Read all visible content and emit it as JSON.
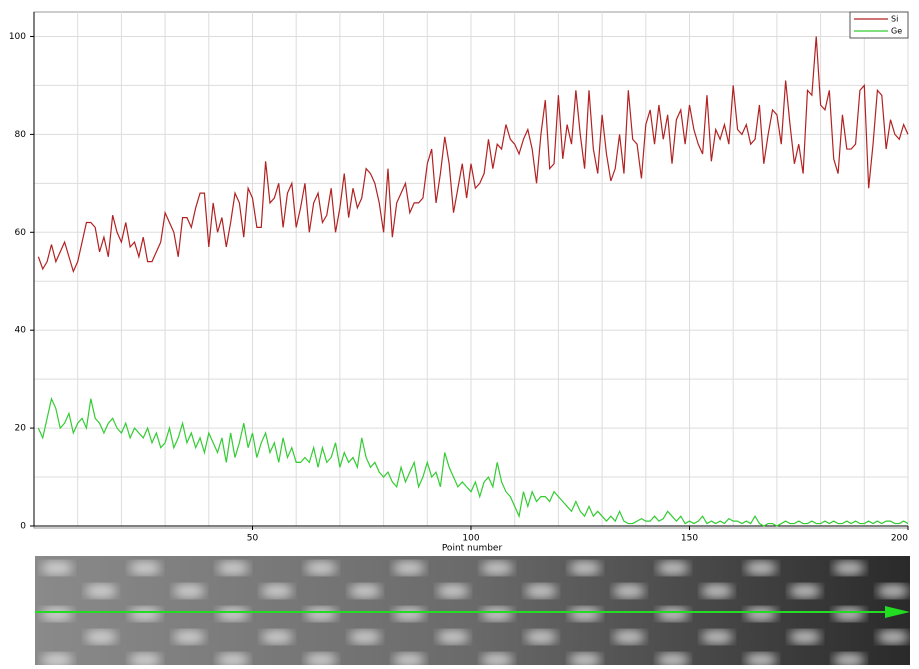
{
  "chart_data": {
    "type": "line",
    "x_label": "Point number",
    "x": [
      1,
      2,
      3,
      4,
      5,
      6,
      7,
      8,
      9,
      10,
      11,
      12,
      13,
      14,
      15,
      16,
      17,
      18,
      19,
      20,
      21,
      22,
      23,
      24,
      25,
      26,
      27,
      28,
      29,
      30,
      31,
      32,
      33,
      34,
      35,
      36,
      37,
      38,
      39,
      40,
      41,
      42,
      43,
      44,
      45,
      46,
      47,
      48,
      49,
      50,
      51,
      52,
      53,
      54,
      55,
      56,
      57,
      58,
      59,
      60,
      61,
      62,
      63,
      64,
      65,
      66,
      67,
      68,
      69,
      70,
      71,
      72,
      73,
      74,
      75,
      76,
      77,
      78,
      79,
      80,
      81,
      82,
      83,
      84,
      85,
      86,
      87,
      88,
      89,
      90,
      91,
      92,
      93,
      94,
      95,
      96,
      97,
      98,
      99,
      100,
      101,
      102,
      103,
      104,
      105,
      106,
      107,
      108,
      109,
      110,
      111,
      112,
      113,
      114,
      115,
      116,
      117,
      118,
      119,
      120,
      121,
      122,
      123,
      124,
      125,
      126,
      127,
      128,
      129,
      130,
      131,
      132,
      133,
      134,
      135,
      136,
      137,
      138,
      139,
      140,
      141,
      142,
      143,
      144,
      145,
      146,
      147,
      148,
      149,
      150,
      151,
      152,
      153,
      154,
      155,
      156,
      157,
      158,
      159,
      160,
      161,
      162,
      163,
      164,
      165,
      166,
      167,
      168,
      169,
      170,
      171,
      172,
      173,
      174,
      175,
      176,
      177,
      178,
      179,
      180,
      181,
      182,
      183,
      184,
      185,
      186,
      187,
      188,
      189,
      190,
      191,
      192,
      193,
      194,
      195,
      196,
      197,
      198,
      199,
      200
    ],
    "series": [
      {
        "name": "Si",
        "color": "#b22222",
        "values": [
          55,
          52.5,
          54,
          57.5,
          54,
          56,
          58,
          55,
          52,
          54,
          58,
          62,
          62,
          61,
          56,
          59,
          55,
          63.5,
          60,
          58,
          62,
          57,
          58,
          55,
          59,
          54,
          54,
          56,
          58,
          64,
          62,
          60,
          55,
          63,
          63,
          61,
          65,
          68,
          68,
          57,
          66,
          60,
          63,
          57,
          62,
          68,
          66,
          59,
          69,
          67,
          61,
          61,
          74.5,
          66,
          67,
          70,
          61,
          68,
          70,
          61,
          65,
          70,
          60,
          66,
          68,
          62,
          63.5,
          69,
          60,
          65,
          72,
          63,
          69,
          65,
          67,
          73,
          72,
          70,
          66,
          60,
          73,
          59,
          66,
          68,
          70,
          64,
          66,
          66,
          67,
          74,
          77,
          66,
          72,
          79.5,
          74,
          64,
          69,
          74,
          67,
          74,
          69,
          70,
          72,
          79,
          73,
          78,
          77,
          82,
          79,
          78,
          76,
          79,
          81,
          77,
          70,
          80,
          87,
          73,
          74,
          88,
          75,
          82,
          78,
          89,
          80,
          73,
          89,
          77,
          72,
          84,
          76,
          70.5,
          73,
          80,
          72,
          89,
          79,
          78,
          71,
          82,
          85,
          78,
          86,
          79,
          84,
          74,
          83,
          85,
          78,
          86,
          81,
          78,
          76,
          88,
          74.5,
          81,
          79,
          82,
          78,
          90,
          81,
          80,
          82,
          78,
          79,
          86,
          74,
          80,
          85,
          84,
          78,
          91,
          82,
          74,
          78,
          72,
          89,
          88,
          100,
          86,
          85,
          89,
          75,
          72,
          84,
          77,
          77,
          78,
          89,
          90,
          69,
          78,
          89,
          88,
          77,
          83,
          80,
          79,
          82,
          80
        ]
      },
      {
        "name": "Ge",
        "color": "#33cc33",
        "values": [
          20,
          18,
          22,
          26,
          24,
          20,
          21,
          23,
          19,
          21,
          22,
          20,
          26,
          22,
          21,
          19,
          21,
          22,
          20,
          19,
          21,
          18,
          20,
          19,
          18,
          20,
          17,
          19,
          16,
          17,
          20,
          16,
          18,
          21,
          17,
          19,
          16,
          18,
          15,
          19,
          17,
          15,
          18,
          13,
          19,
          14,
          17,
          21,
          16,
          19,
          14,
          17,
          19,
          15,
          17,
          13,
          18,
          14,
          16,
          13,
          13,
          14,
          13,
          16,
          12,
          16,
          13,
          14,
          17,
          12,
          15,
          13,
          14,
          12,
          18,
          14,
          12,
          13,
          11,
          10,
          11,
          9,
          8,
          12,
          9,
          11,
          13,
          8,
          10,
          13,
          10,
          11,
          8,
          15,
          12,
          10,
          8,
          9,
          8,
          7,
          9,
          6,
          9,
          10,
          8,
          13,
          9,
          7,
          6,
          4,
          2,
          7,
          4,
          7,
          5,
          6,
          6,
          5,
          7,
          6,
          5,
          4,
          3,
          5,
          3,
          2,
          4,
          2,
          3,
          2,
          1,
          2,
          1,
          3,
          1,
          0.5,
          0.5,
          1,
          1.5,
          1,
          1,
          2,
          1,
          1.5,
          3,
          2,
          1,
          2,
          0.5,
          1,
          0.5,
          1,
          2,
          0.5,
          1,
          0.5,
          1,
          0.5,
          1.5,
          1,
          1,
          0.5,
          1,
          0.5,
          2,
          0.5,
          0,
          0.5,
          0.5,
          0,
          0.5,
          1,
          0.5,
          0.5,
          1,
          0.5,
          0.5,
          1,
          0.5,
          0.5,
          1,
          0.5,
          1,
          0.5,
          0.5,
          1,
          0.5,
          1,
          0.5,
          0.5,
          1,
          0.5,
          1,
          0.5,
          1,
          1,
          0.5,
          0.5,
          1,
          0.5
        ]
      }
    ],
    "xlim": [
      0,
      200
    ],
    "ylim": [
      0,
      105
    ],
    "xticks": [
      50,
      100,
      150,
      200
    ],
    "yticks": [
      0,
      20,
      40,
      60,
      80,
      100
    ],
    "x_minor_ticks": [
      10,
      20,
      30,
      40,
      60,
      70,
      80,
      90,
      110,
      120,
      130,
      140,
      160,
      170,
      180,
      190
    ],
    "y_minor_ticks": [
      10,
      30,
      50,
      70,
      90
    ],
    "grid": true,
    "legend": "upper right"
  }
}
